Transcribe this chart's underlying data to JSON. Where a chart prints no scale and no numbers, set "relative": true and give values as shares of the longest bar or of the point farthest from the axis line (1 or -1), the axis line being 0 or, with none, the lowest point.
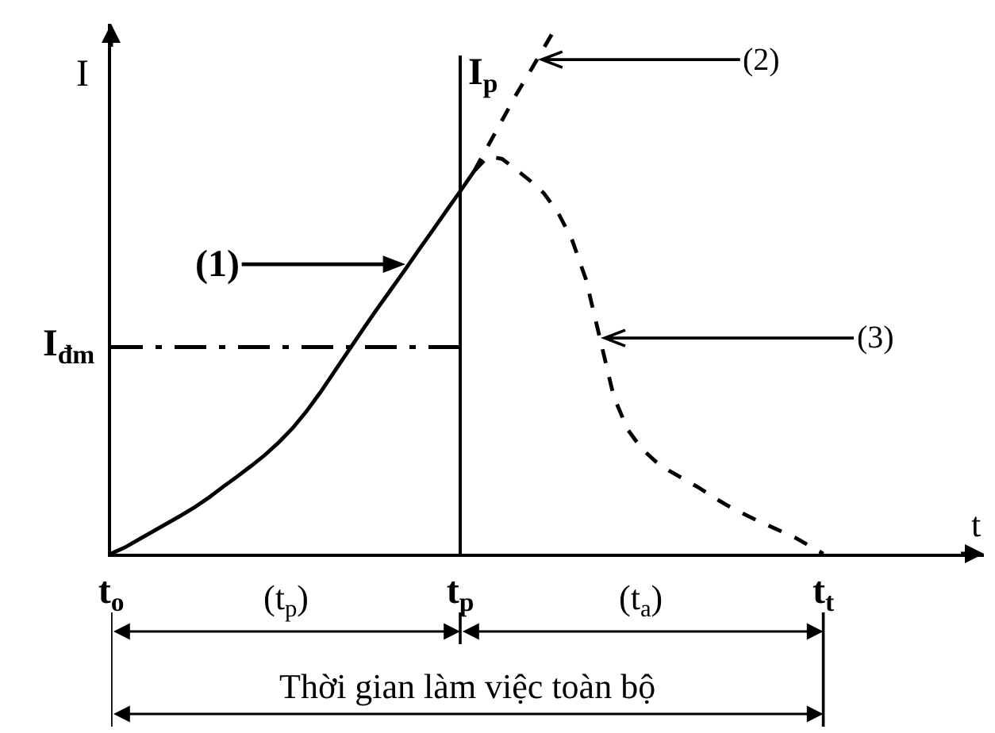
{
  "chart_data": {
    "type": "line",
    "relative": true,
    "xlabel": "t",
    "ylabel": "I",
    "tick_labels": "x",
    "grid": false,
    "marker": "none",
    "categories": [
      "t$_{o}$",
      null,
      null,
      null,
      null,
      null,
      null,
      null,
      null,
      null,
      null,
      null,
      null,
      null,
      null,
      null,
      null,
      null,
      null,
      null,
      null,
      null,
      null,
      null,
      null,
      "t$_{p}$",
      null,
      null,
      null,
      null,
      null,
      null,
      null,
      null,
      null,
      null,
      null,
      null,
      null,
      null,
      null,
      null,
      null,
      null,
      null,
      null,
      null,
      null,
      null,
      null,
      null,
      "t$_{t}$",
      null,
      null,
      null,
      null,
      null,
      null,
      null,
      null,
      null,
      null,
      null
    ],
    "series": [
      {
        "name": "(1)",
        "color": "#000000",
        "line_style": "solid",
        "values": [
          0,
          0.012,
          0.027,
          0.042,
          0.057,
          0.072,
          0.088,
          0.106,
          0.126,
          0.145,
          0.165,
          0.186,
          0.21,
          0.237,
          0.269,
          0.305,
          0.344,
          0.383,
          0.422,
          0.46,
          0.497,
          0.534,
          0.572,
          0.609,
          0.647,
          0.684,
          0.722,
          null,
          null,
          null,
          null,
          null,
          null,
          null,
          null,
          null,
          null,
          null,
          null,
          null,
          null,
          null,
          null,
          null,
          null,
          null,
          null,
          null,
          null,
          null,
          null,
          null,
          null,
          null,
          null,
          null,
          null,
          null,
          null,
          null,
          null,
          null,
          null
        ]
      },
      {
        "name": "(2)",
        "color": "#000000",
        "line_style": "dashed",
        "values": [
          null,
          null,
          null,
          null,
          null,
          null,
          null,
          null,
          null,
          null,
          null,
          null,
          null,
          null,
          null,
          null,
          null,
          null,
          null,
          null,
          null,
          null,
          null,
          null,
          null,
          null,
          0.722,
          0.77,
          0.818,
          0.866,
          0.91,
          0.955,
          1.0,
          null,
          null,
          null,
          null,
          null,
          null,
          null,
          null,
          null,
          null,
          null,
          null,
          null,
          null,
          null,
          null,
          null,
          null,
          null,
          null,
          null,
          null,
          null,
          null,
          null,
          null,
          null,
          null,
          null,
          null
        ]
      },
      {
        "name": "(3)",
        "color": "#000000",
        "line_style": "dashed",
        "values": [
          null,
          null,
          null,
          null,
          null,
          null,
          null,
          null,
          null,
          null,
          null,
          null,
          null,
          null,
          null,
          null,
          null,
          null,
          null,
          null,
          null,
          null,
          null,
          null,
          null,
          null,
          0.722,
          0.75,
          0.745,
          0.725,
          0.704,
          0.68,
          0.644,
          0.593,
          0.518,
          0.407,
          0.296,
          0.234,
          0.198,
          0.174,
          0.156,
          0.141,
          0.126,
          0.109,
          0.093,
          0.079,
          0.066,
          0.054,
          0.042,
          0.03,
          0.015,
          0,
          null,
          null,
          null,
          null,
          null,
          null,
          null,
          null,
          null,
          null,
          null
        ]
      }
    ],
    "ref_lines": [
      {
        "axis": "y",
        "value": 0.39,
        "label": "I$_{đm}$",
        "line_style": "dashdot",
        "color": "#000000"
      },
      {
        "axis": "x",
        "value": "t$_{p}$",
        "label": "I$_{p}$",
        "line_style": "solid",
        "color": "#000000"
      }
    ],
    "annotations": [
      "(t$_{p}$)",
      "(t$_{a}$)",
      "Thời gian làm việc toàn bộ"
    ]
  }
}
